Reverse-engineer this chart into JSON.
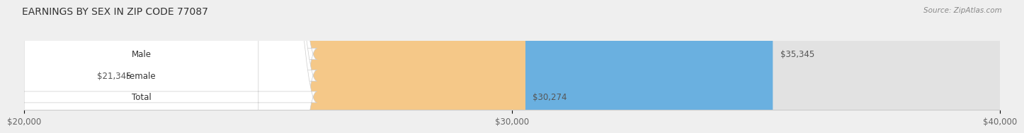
{
  "title": "EARNINGS BY SEX IN ZIP CODE 77087",
  "source": "Source: ZipAtlas.com",
  "categories": [
    "Male",
    "Female",
    "Total"
  ],
  "values": [
    35345,
    21345,
    30274
  ],
  "bar_colors": [
    "#6ab0e0",
    "#f4a0c0",
    "#f5c888"
  ],
  "bar_labels": [
    "$35,345",
    "$21,345",
    "$30,274"
  ],
  "xmin": 20000,
  "xmax": 40000,
  "xticks": [
    20000,
    30000,
    40000
  ],
  "xtick_labels": [
    "$20,000",
    "$30,000",
    "$40,000"
  ],
  "background_color": "#efefef",
  "bar_background_color": "#e2e2e2",
  "title_fontsize": 10,
  "label_fontsize": 8.5,
  "source_fontsize": 7.5,
  "bar_height": 0.52
}
